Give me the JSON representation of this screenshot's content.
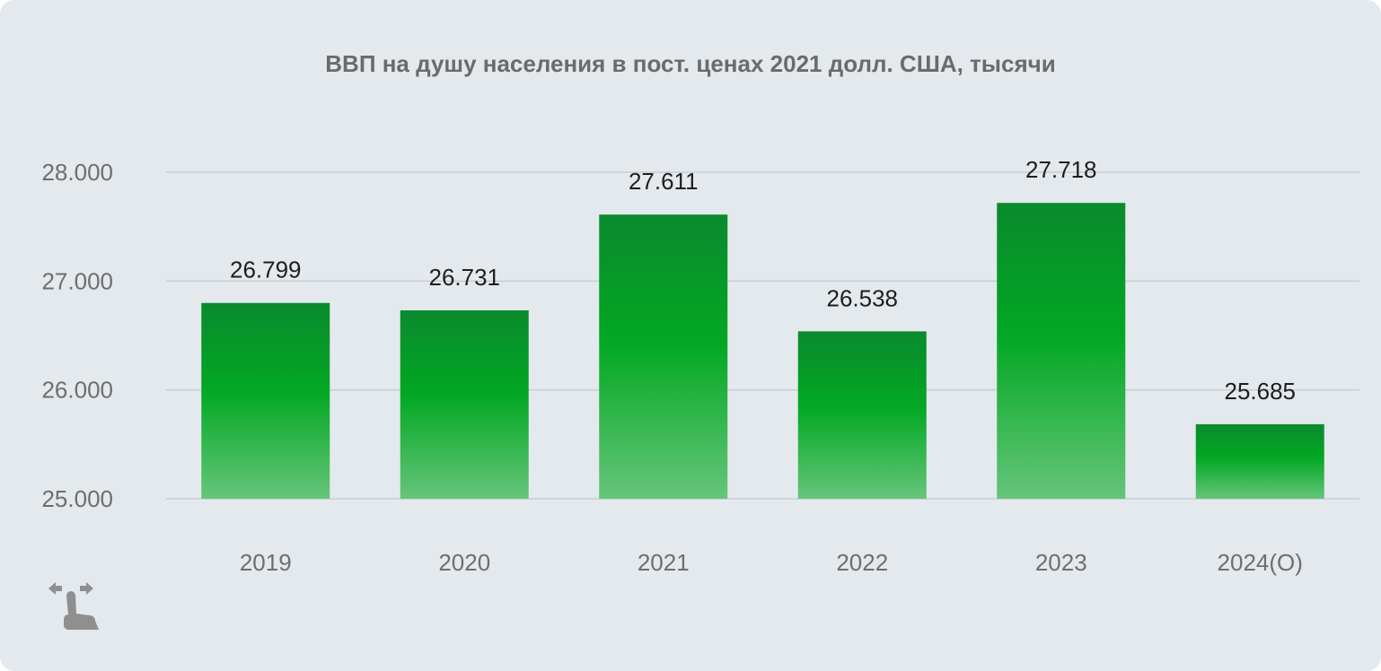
{
  "chart_data": {
    "type": "bar",
    "title": "ВВП на душу населения в пост. ценах 2021 долл. США, тысячи",
    "categories": [
      "2019",
      "2020",
      "2021",
      "2022",
      "2023",
      "2024(О)"
    ],
    "values": [
      26.799,
      26.731,
      27.611,
      26.538,
      27.718,
      25.685
    ],
    "value_labels": [
      "26.799",
      "26.731",
      "27.611",
      "26.538",
      "27.718",
      "25.685"
    ],
    "ylim": [
      25,
      28
    ],
    "yticks": [
      25,
      26,
      27,
      28
    ],
    "ytick_labels": [
      "25.000",
      "26.000",
      "27.000",
      "28.000"
    ],
    "grid": true,
    "xlabel": "",
    "ylabel": "",
    "colors": {
      "bar_top": "#0a8a2e",
      "bar_mid": "#02a823",
      "bar_bottom": "#66c57a",
      "grid": "#c9cdd1"
    }
  },
  "icons": {
    "swipe": "swipe-horizontal-hand-icon"
  }
}
